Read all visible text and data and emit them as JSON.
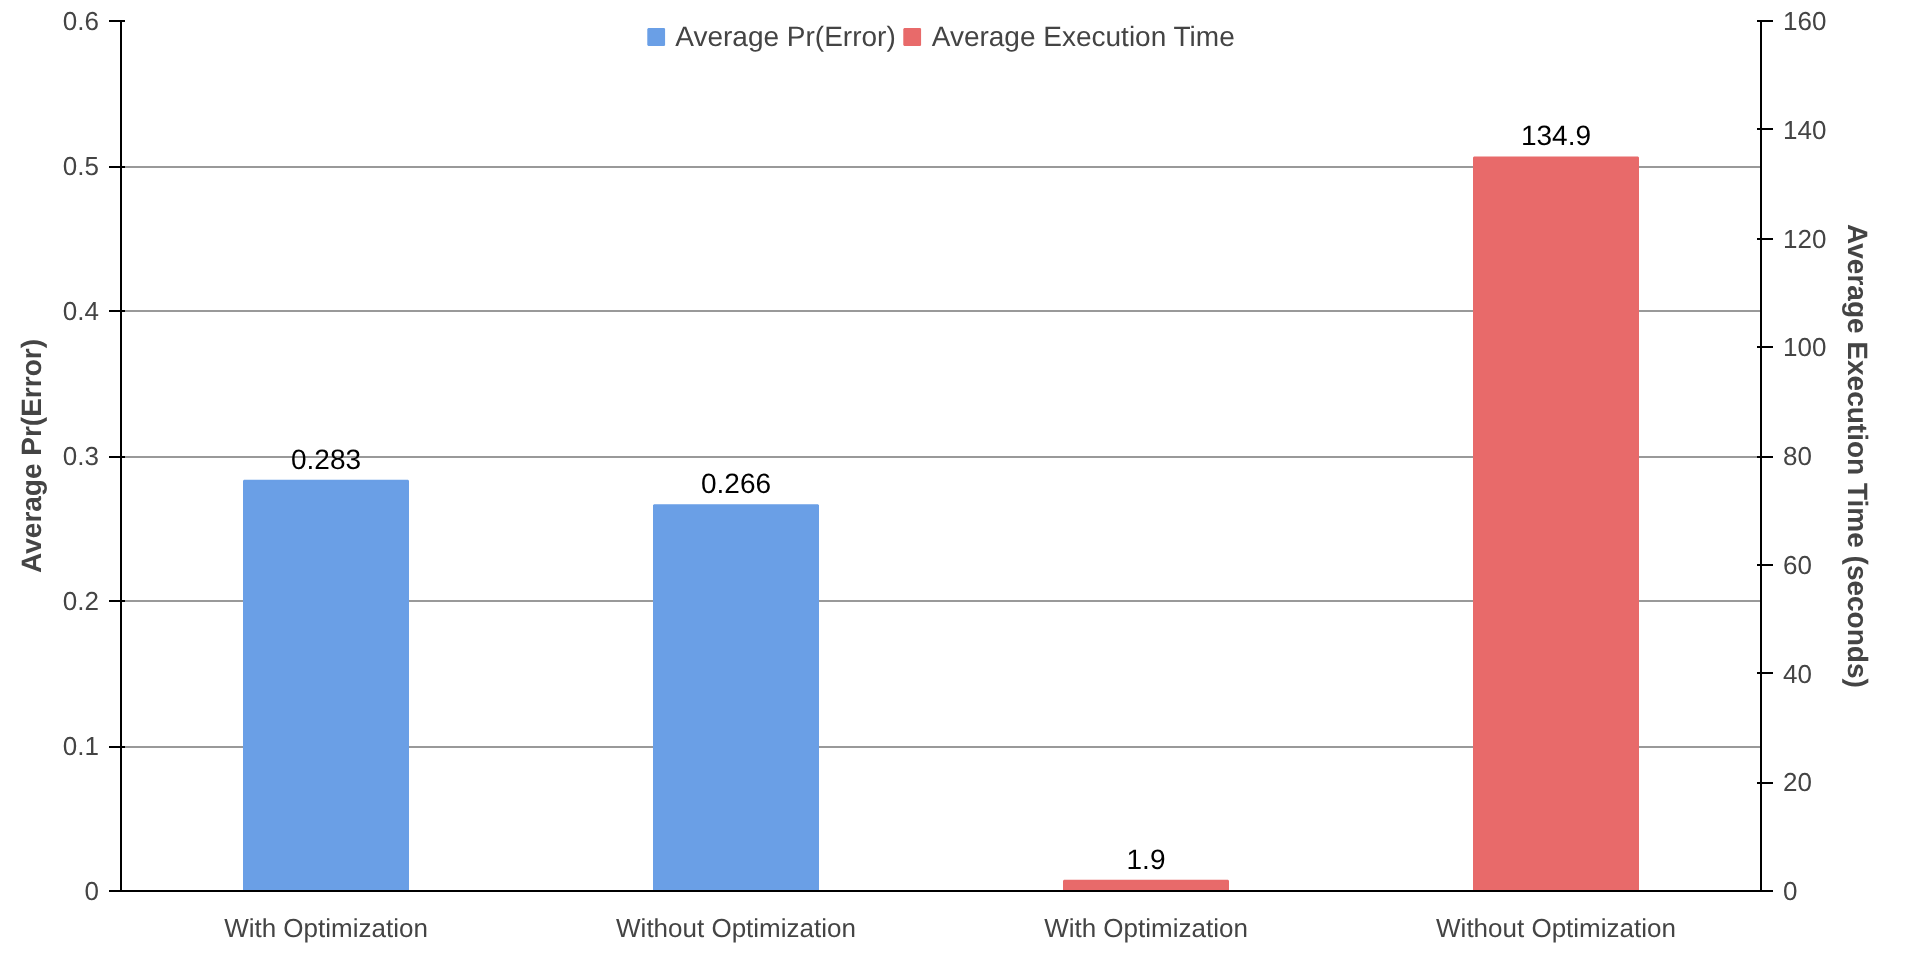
{
  "chart_data": {
    "type": "bar",
    "categories": [
      "With Optimization",
      "Without Optimization",
      "With Optimization",
      "Without Optimization"
    ],
    "series": [
      {
        "name": "Average Pr(Error)",
        "color": "#6a9fe6",
        "values": [
          0.283,
          0.266,
          null,
          null
        ]
      },
      {
        "name": "Average Execution Time",
        "color": "#e86a6a",
        "values": [
          null,
          null,
          1.9,
          134.9
        ],
        "axis": "y2"
      }
    ],
    "ylabel": "Average Pr(Error)",
    "y2label": "Average Execution Time (seconds)",
    "ylim": [
      0,
      0.6
    ],
    "yticks": [
      0,
      0.1,
      0.2,
      0.3,
      0.4,
      0.5,
      0.6
    ],
    "y2lim": [
      0,
      160
    ],
    "y2ticks": [
      0,
      20,
      40,
      60,
      80,
      100,
      120,
      140,
      160
    ],
    "grid": "y",
    "legend": "top",
    "data_labels": true
  }
}
